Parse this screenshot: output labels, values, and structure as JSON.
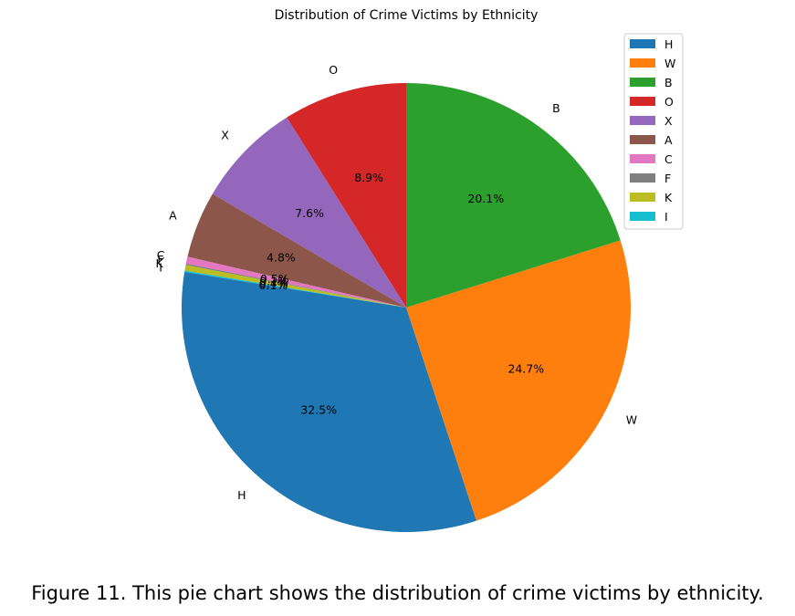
{
  "caption": "Figure 11. This pie chart shows the distribution of crime victims by ethnicity.",
  "chart_data": {
    "type": "pie",
    "title": "Distribution of Crime Victims by Ethnicity",
    "start_angle_deg": 90,
    "direction": "counterclockwise",
    "legend_position": "top-right",
    "slices": [
      {
        "label": "O",
        "value": 8.9,
        "pct_label": "8.9%",
        "color": "#d62728"
      },
      {
        "label": "X",
        "value": 7.6,
        "pct_label": "7.6%",
        "color": "#9467bd"
      },
      {
        "label": "A",
        "value": 4.8,
        "pct_label": "4.8%",
        "color": "#8c564b"
      },
      {
        "label": "C",
        "value": 0.5,
        "pct_label": "0.5%",
        "color": "#e377c2"
      },
      {
        "label": "F",
        "value": 0.1,
        "pct_label": "0.1%",
        "color": "#7f7f7f"
      },
      {
        "label": "K",
        "value": 0.4,
        "pct_label": "0.4%",
        "color": "#bcbd22"
      },
      {
        "label": "I",
        "value": 0.1,
        "pct_label": "0.1%",
        "color": "#17becf"
      },
      {
        "label": "H",
        "value": 32.5,
        "pct_label": "32.5%",
        "color": "#1f77b4"
      },
      {
        "label": "W",
        "value": 24.7,
        "pct_label": "24.7%",
        "color": "#ff7f0e"
      },
      {
        "label": "B",
        "value": 20.1,
        "pct_label": "20.1%",
        "color": "#2ca02c"
      }
    ],
    "legend": [
      {
        "label": "H",
        "color": "#1f77b4"
      },
      {
        "label": "W",
        "color": "#ff7f0e"
      },
      {
        "label": "B",
        "color": "#2ca02c"
      },
      {
        "label": "O",
        "color": "#d62728"
      },
      {
        "label": "X",
        "color": "#9467bd"
      },
      {
        "label": "A",
        "color": "#8c564b"
      },
      {
        "label": "C",
        "color": "#e377c2"
      },
      {
        "label": "F",
        "color": "#7f7f7f"
      },
      {
        "label": "K",
        "color": "#bcbd22"
      },
      {
        "label": "I",
        "color": "#17becf"
      }
    ]
  }
}
